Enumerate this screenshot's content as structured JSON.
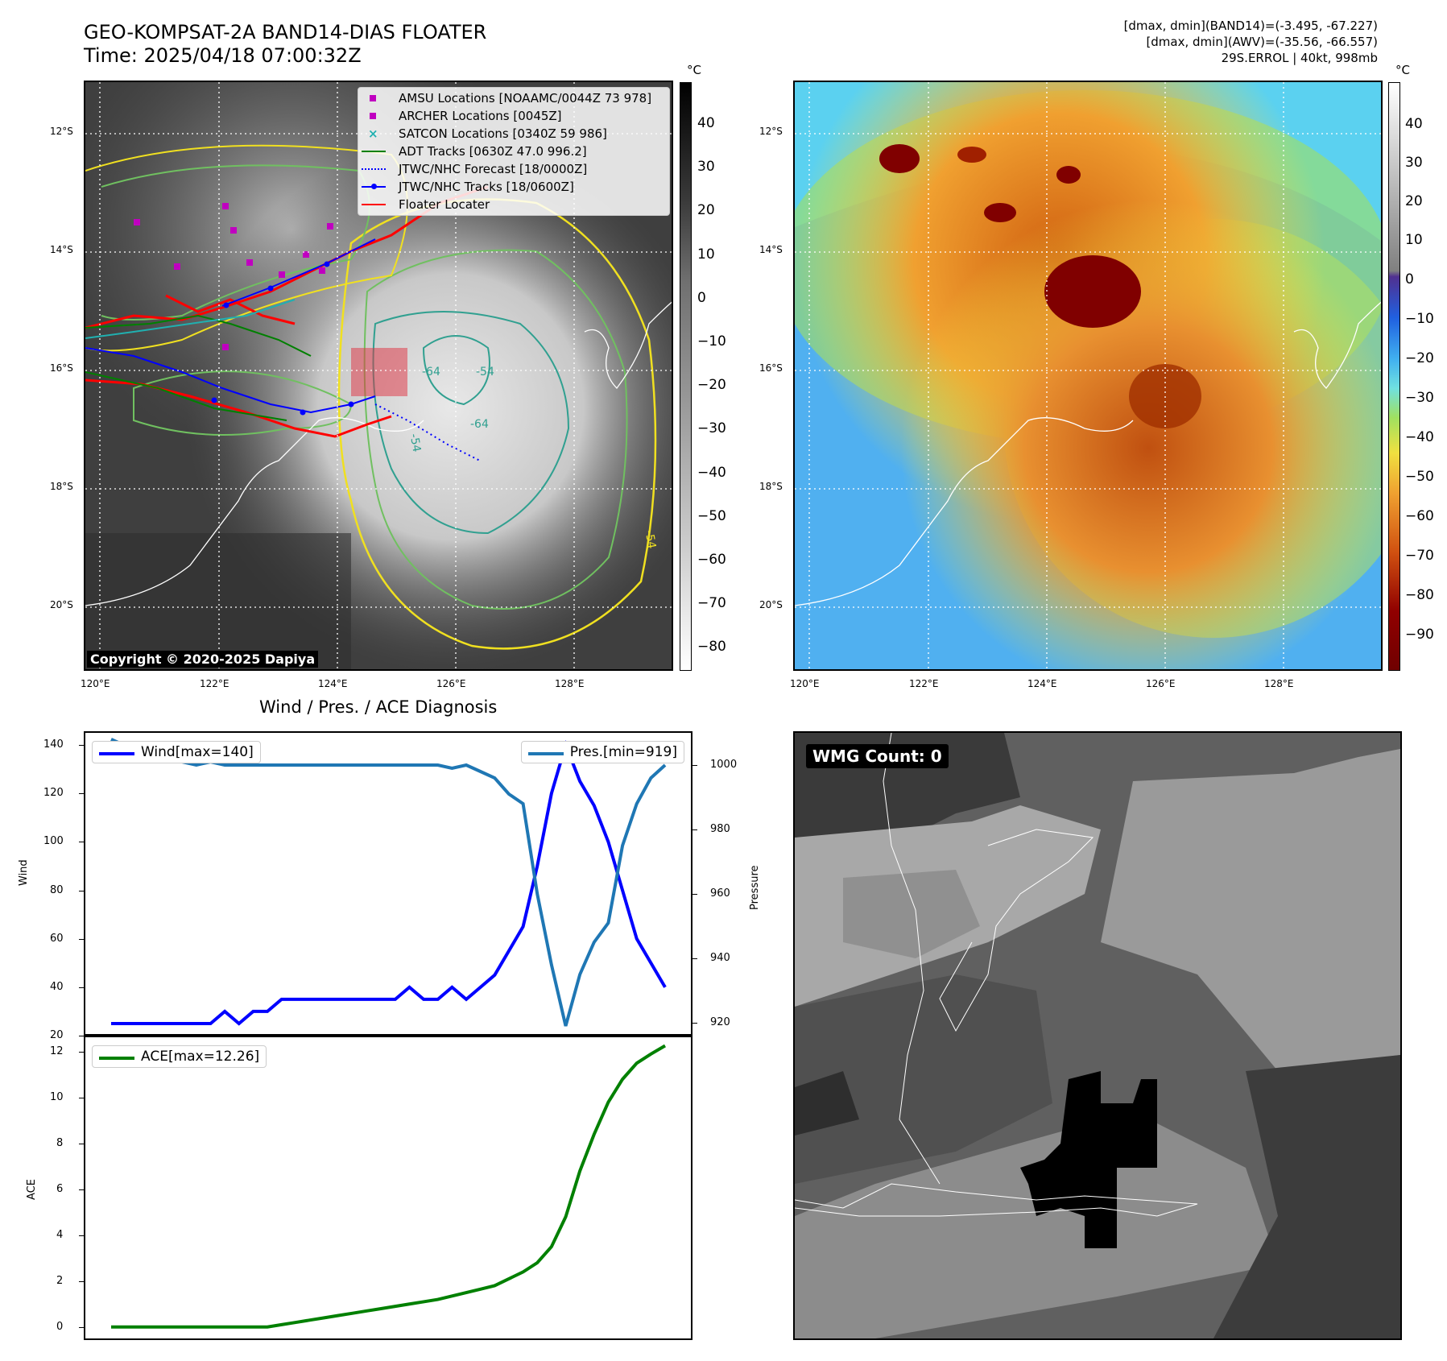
{
  "header": {
    "title": "GEO-KOMPSAT-2A BAND14-DIAS FLOATER",
    "time": "Time: 2025/04/18 07:00:32Z",
    "info_line1": "[dmax, dmin](BAND14)=(-3.495, -67.227)",
    "info_line2": "[dmax, dmin](AWV)=(-35.56, -66.557)",
    "info_line3": "29S.ERROL | 40kt, 998mb"
  },
  "map_left": {
    "copyright": "Copyright © 2020-2025 Dapiya",
    "contour_labels": [
      "-64",
      "-54",
      "-54",
      "-64",
      "-54",
      "-54"
    ],
    "legend": [
      {
        "label": "AMSU Locations [NOAAMC/0044Z 73 978]",
        "color": "#c000c0",
        "marker": "square"
      },
      {
        "label": "ARCHER Locations [0045Z]",
        "color": "#c000c0",
        "marker": "square"
      },
      {
        "label": "SATCON Locations [0340Z 59 986]",
        "color": "#20b0b0",
        "marker": "x"
      },
      {
        "label": "ADT Tracks [0630Z 47.0 996.2]",
        "color": "#008000",
        "marker": "line"
      },
      {
        "label": "JTWC/NHC Forecast [18/0000Z]",
        "color": "#0000ff",
        "marker": "dotted"
      },
      {
        "label": "JTWC/NHC Tracks [18/0600Z]",
        "color": "#0000ff",
        "marker": "line-dot"
      },
      {
        "label": "Floater Locater",
        "color": "#ff0000",
        "marker": "line"
      }
    ],
    "colorbar_unit": "°C",
    "colorbar_ticks": [
      "40",
      "30",
      "20",
      "10",
      "0",
      "−10",
      "−20",
      "−30",
      "−40",
      "−50",
      "−60",
      "−70",
      "−80"
    ]
  },
  "map_right": {
    "colorbar_unit": "°C",
    "colorbar_ticks": [
      "40",
      "30",
      "20",
      "10",
      "0",
      "−10",
      "−20",
      "−30",
      "−40",
      "−50",
      "−60",
      "−70",
      "−80",
      "−90"
    ]
  },
  "map_axes": {
    "lat_labels": [
      "12°S",
      "14°S",
      "16°S",
      "18°S",
      "20°S"
    ],
    "lon_labels": [
      "120°E",
      "122°E",
      "124°E",
      "126°E",
      "128°E"
    ]
  },
  "wmg": {
    "label": "WMG Count: 0"
  },
  "chart_data": [
    {
      "type": "line",
      "title": "Wind / Pres. / ACE Diagnosis",
      "ylabel": "Wind",
      "ylabel_right": "Pressure",
      "ylim": [
        20,
        145
      ],
      "ylim_right": [
        916,
        1010
      ],
      "yticks": [
        20,
        40,
        60,
        80,
        100,
        120,
        140
      ],
      "yticks_right": [
        920,
        940,
        960,
        980,
        1000
      ],
      "x": [
        0,
        1,
        2,
        3,
        4,
        5,
        6,
        7,
        8,
        9,
        10,
        11,
        12,
        13,
        14,
        15,
        16,
        17,
        18,
        19,
        20,
        21,
        22,
        23,
        24,
        25,
        26,
        27,
        28,
        29,
        30,
        31,
        32,
        33,
        34,
        35,
        36,
        37,
        38,
        39
      ],
      "series": [
        {
          "name": "Wind[max=140]",
          "color": "#0000ff",
          "axis": "left",
          "values": [
            25,
            25,
            25,
            25,
            25,
            25,
            25,
            25,
            30,
            25,
            30,
            30,
            35,
            35,
            35,
            35,
            35,
            35,
            35,
            35,
            35,
            40,
            35,
            35,
            40,
            35,
            40,
            45,
            55,
            65,
            90,
            120,
            140,
            125,
            115,
            100,
            80,
            60,
            50,
            40
          ]
        },
        {
          "name": "Pres.[min=919]",
          "color": "#1f77b4",
          "axis": "right",
          "values": [
            1008,
            1006,
            1006,
            1004,
            1002,
            1001,
            1000,
            1001,
            1000,
            1000,
            1000,
            1000,
            1000,
            1000,
            1000,
            1000,
            1000,
            1000,
            1000,
            1000,
            1000,
            1000,
            1000,
            1000,
            999,
            1000,
            998,
            996,
            991,
            988,
            960,
            938,
            919,
            935,
            945,
            951,
            975,
            988,
            996,
            1000
          ]
        }
      ]
    },
    {
      "type": "line",
      "ylabel": "ACE",
      "ylim": [
        -0.5,
        12.7
      ],
      "yticks": [
        0,
        2,
        4,
        6,
        8,
        10,
        12
      ],
      "x": [
        0,
        1,
        2,
        3,
        4,
        5,
        6,
        7,
        8,
        9,
        10,
        11,
        12,
        13,
        14,
        15,
        16,
        17,
        18,
        19,
        20,
        21,
        22,
        23,
        24,
        25,
        26,
        27,
        28,
        29,
        30,
        31,
        32,
        33,
        34,
        35,
        36,
        37,
        38,
        39
      ],
      "series": [
        {
          "name": "ACE[max=12.26]",
          "color": "#008000",
          "values": [
            0,
            0,
            0,
            0,
            0,
            0,
            0,
            0,
            0,
            0,
            0,
            0,
            0.1,
            0.2,
            0.3,
            0.4,
            0.5,
            0.6,
            0.7,
            0.8,
            0.9,
            1.0,
            1.1,
            1.2,
            1.35,
            1.5,
            1.65,
            1.8,
            2.1,
            2.4,
            2.8,
            3.5,
            4.8,
            6.8,
            8.4,
            9.8,
            10.8,
            11.5,
            11.9,
            12.26
          ]
        }
      ]
    }
  ]
}
